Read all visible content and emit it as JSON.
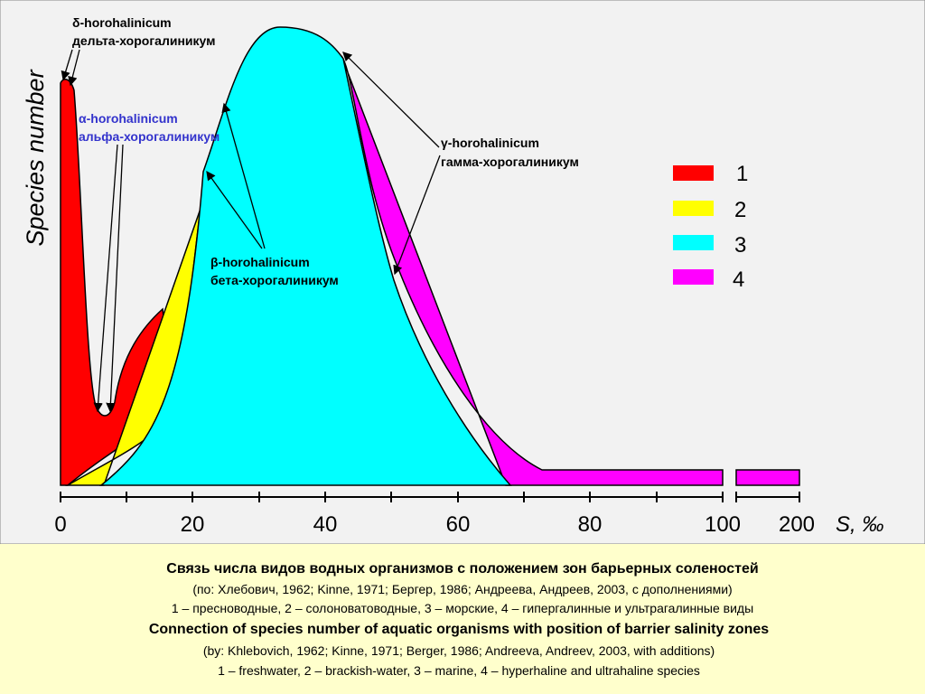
{
  "chart": {
    "y_axis_label": "Species number",
    "x_axis_label": "S, ‰",
    "x_ticks": [
      "0",
      "20",
      "40",
      "60",
      "80",
      "100",
      "200"
    ],
    "legend": [
      "1",
      "2",
      "3",
      "4"
    ],
    "annotations": {
      "delta": [
        "δ-horohalinicum",
        "дельта-хорогалиникум"
      ],
      "alpha": [
        "α-horohalinicum",
        "альфа-хорогалиникум"
      ],
      "beta": [
        "β-horohalinicum",
        "бета-хорогалиникум"
      ],
      "gamma": [
        "γ-horohalinicum",
        "гамма-хорогалиникум"
      ]
    }
  },
  "caption": [
    "Связь числа видов водных организмов с положением зон барьерных соленостей",
    "(по: Хлебович, 1962; Kinne, 1971; Бергер, 1986; Андреева, Андреев, 2003, с дополнениями)",
    "1 – пресноводные, 2 – солоноватоводные, 3 – морские, 4 – гипергалинные и ультрагалинные виды",
    "Connection of species number of aquatic organisms with position of barrier salinity zones",
    "(by: Khlebovich, 1962; Kinne, 1971; Berger, 1986; Andreeva, Andreev, 2003, with additions)",
    "1 – freshwater, 2 – brackish-water, 3 – marine, 4 – hyperhaline and ultrahaline species"
  ]
}
